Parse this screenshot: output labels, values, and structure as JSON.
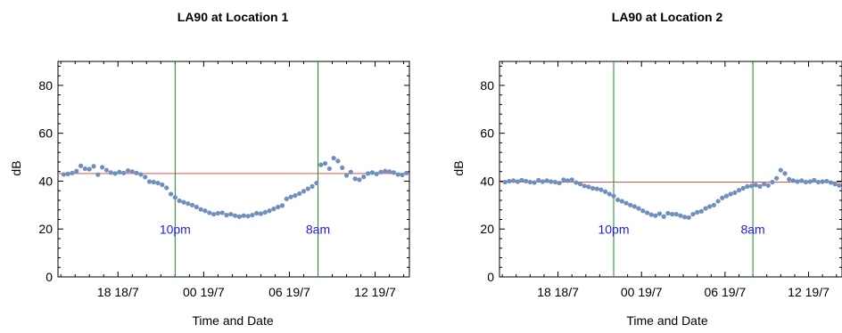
{
  "chart_data": [
    {
      "type": "scatter",
      "title": "LA90 at Location 1",
      "xlabel": "Time and Date",
      "ylabel": "dB",
      "ylim": [
        0,
        90
      ],
      "yticks": [
        0,
        20,
        40,
        60,
        80
      ],
      "x_ticks": [
        {
          "value": 18,
          "label": "18 18/7"
        },
        {
          "value": 24,
          "label": "00 19/7"
        },
        {
          "value": 30,
          "label": "06 19/7"
        },
        {
          "value": 36,
          "label": "12 19/7"
        }
      ],
      "xlim": [
        13.8,
        38.4
      ],
      "reference_line": {
        "value": 43.2,
        "color": "#d9534f"
      },
      "vertical_lines": [
        {
          "x": 22,
          "label": "10pm"
        },
        {
          "x": 32,
          "label": "8am"
        }
      ],
      "marker_color": "#6f8fbf",
      "series": [
        {
          "x": [
            14.2,
            14.5,
            14.8,
            15.1,
            15.4,
            15.7,
            16.0,
            16.3,
            16.6,
            16.9,
            17.2,
            17.5,
            17.8,
            18.1,
            18.4,
            18.7,
            19.0,
            19.3,
            19.6,
            19.9,
            20.2,
            20.5,
            20.8,
            21.1,
            21.4,
            21.7,
            22.0,
            22.3,
            22.6,
            22.9,
            23.2,
            23.5,
            23.8,
            24.1,
            24.4,
            24.7,
            25.0,
            25.3,
            25.6,
            25.9,
            26.2,
            26.5,
            26.8,
            27.1,
            27.4,
            27.7,
            28.0,
            28.3,
            28.6,
            28.9,
            29.2,
            29.5,
            29.8,
            30.1,
            30.4,
            30.7,
            31.0,
            31.3,
            31.6,
            31.9,
            32.2,
            32.5,
            32.8,
            33.1,
            33.4,
            33.7,
            34.0,
            34.3,
            34.6,
            34.9,
            35.2,
            35.5,
            35.8,
            36.1,
            36.4,
            36.7,
            37.0,
            37.3,
            37.6,
            37.9,
            38.2
          ],
          "y": [
            42.8,
            43.0,
            43.4,
            44.2,
            46.4,
            45.2,
            45.0,
            46.2,
            42.7,
            45.8,
            44.6,
            43.6,
            43.2,
            43.8,
            43.4,
            44.4,
            44.0,
            43.4,
            42.8,
            41.7,
            39.8,
            39.6,
            39.2,
            38.5,
            37.2,
            34.6,
            33.2,
            31.8,
            31.2,
            30.6,
            30.0,
            29.2,
            28.2,
            27.6,
            26.8,
            26.2,
            26.6,
            26.8,
            25.8,
            26.2,
            25.6,
            25.2,
            25.6,
            25.4,
            25.8,
            26.6,
            26.4,
            27.0,
            27.6,
            28.4,
            29.2,
            29.8,
            32.6,
            33.4,
            34.0,
            34.8,
            35.8,
            36.8,
            37.8,
            39.2,
            46.8,
            47.4,
            45.2,
            49.6,
            48.4,
            45.6,
            42.4,
            43.8,
            41.0,
            40.6,
            41.8,
            43.2,
            43.6,
            43.0,
            43.8,
            44.2,
            44.0,
            43.6,
            42.8,
            42.6,
            43.4
          ]
        }
      ]
    },
    {
      "type": "scatter",
      "title": "LA90 at Location 2",
      "xlabel": "Time and Date",
      "ylabel": "dB",
      "ylim": [
        0,
        90
      ],
      "yticks": [
        0,
        20,
        40,
        60,
        80
      ],
      "x_ticks": [
        {
          "value": 18,
          "label": "18 18/7"
        },
        {
          "value": 24,
          "label": "00 19/7"
        },
        {
          "value": 30,
          "label": "06 19/7"
        },
        {
          "value": 36,
          "label": "12 19/7"
        }
      ],
      "xlim": [
        13.8,
        38.4
      ],
      "reference_line": {
        "value": 39.6,
        "color": "#d9534f"
      },
      "vertical_lines": [
        {
          "x": 22,
          "label": "10pm"
        },
        {
          "x": 32,
          "label": "8am"
        }
      ],
      "marker_color": "#6f8fbf",
      "series": [
        {
          "x": [
            14.2,
            14.5,
            14.8,
            15.1,
            15.4,
            15.7,
            16.0,
            16.3,
            16.6,
            16.9,
            17.2,
            17.5,
            17.8,
            18.1,
            18.4,
            18.7,
            19.0,
            19.3,
            19.6,
            19.9,
            20.2,
            20.5,
            20.8,
            21.1,
            21.4,
            21.7,
            22.0,
            22.3,
            22.6,
            22.9,
            23.2,
            23.5,
            23.8,
            24.1,
            24.4,
            24.7,
            25.0,
            25.3,
            25.6,
            25.9,
            26.2,
            26.5,
            26.8,
            27.1,
            27.4,
            27.7,
            28.0,
            28.3,
            28.6,
            28.9,
            29.2,
            29.5,
            29.8,
            30.1,
            30.4,
            30.7,
            31.0,
            31.3,
            31.6,
            31.9,
            32.2,
            32.5,
            32.8,
            33.1,
            33.4,
            33.7,
            34.0,
            34.3,
            34.6,
            34.9,
            35.2,
            35.5,
            35.8,
            36.1,
            36.4,
            36.7,
            37.0,
            37.3,
            37.6,
            37.9,
            38.2
          ],
          "y": [
            39.6,
            40.0,
            40.2,
            39.8,
            40.4,
            40.0,
            39.6,
            39.4,
            40.4,
            39.8,
            40.2,
            39.8,
            39.6,
            39.2,
            40.6,
            40.2,
            40.6,
            39.4,
            38.8,
            38.0,
            37.6,
            37.0,
            36.8,
            36.4,
            35.6,
            34.6,
            33.8,
            32.2,
            31.6,
            30.8,
            30.0,
            29.4,
            28.6,
            27.6,
            26.8,
            26.0,
            25.6,
            26.4,
            25.2,
            26.6,
            26.2,
            26.2,
            25.6,
            25.0,
            24.8,
            26.2,
            27.0,
            27.4,
            28.6,
            29.4,
            30.0,
            31.6,
            33.0,
            33.8,
            34.6,
            35.2,
            36.2,
            37.0,
            37.8,
            38.0,
            38.4,
            37.8,
            38.8,
            38.2,
            39.6,
            41.2,
            44.6,
            43.2,
            40.8,
            40.2,
            39.8,
            40.2,
            39.6,
            39.8,
            40.4,
            39.6,
            39.8,
            40.0,
            39.4,
            38.8,
            38.2
          ]
        }
      ]
    }
  ]
}
